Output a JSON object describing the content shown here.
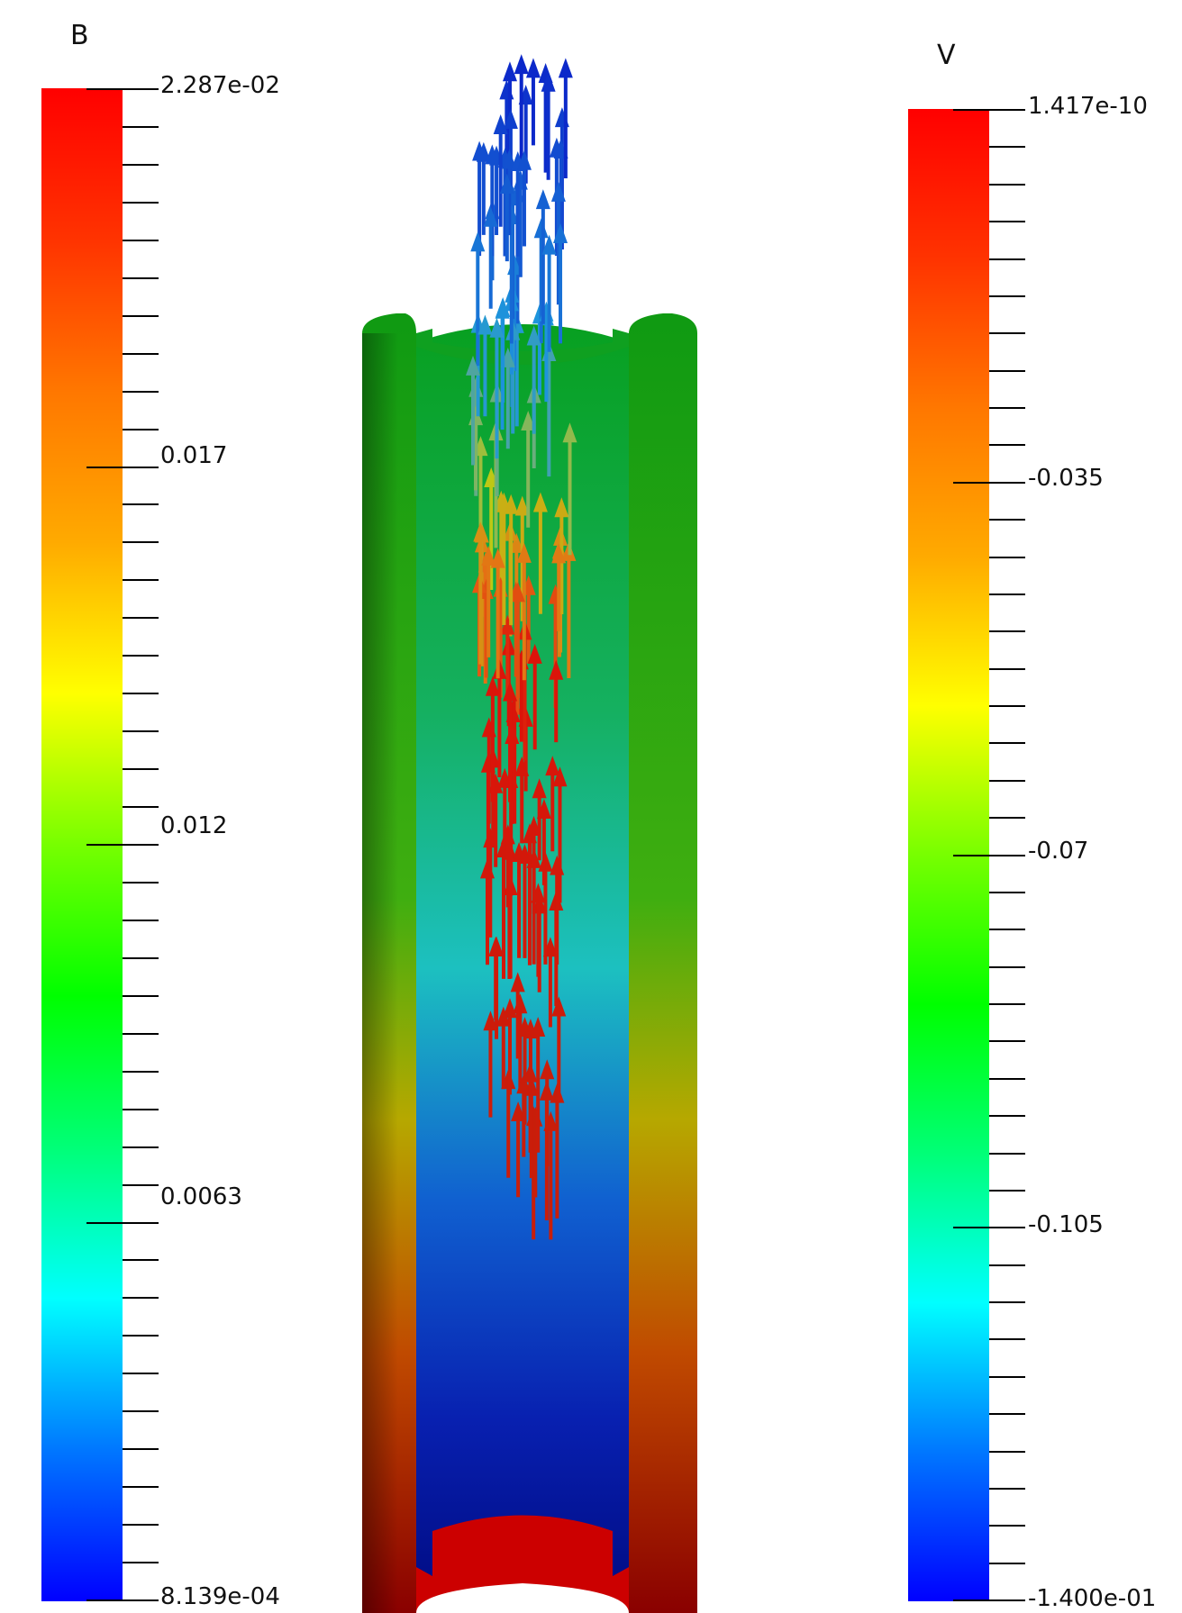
{
  "legend_b": {
    "title": "B",
    "max_label": "2.287e-02",
    "labels": [
      "0.017",
      "0.012",
      "0.0063"
    ],
    "min_label": "8.139e-04"
  },
  "legend_v": {
    "title": "V",
    "max_label": "1.417e-10",
    "labels": [
      "-0.035",
      "-0.07",
      "-0.105"
    ],
    "min_label": "-1.400e-01"
  },
  "colors": {
    "colormap": [
      "#0000ff",
      "#0077ff",
      "#00ffff",
      "#00ff77",
      "#00ff00",
      "#77ff00",
      "#ffff00",
      "#ffaa00",
      "#ff7700",
      "#ff3300",
      "#ff0000"
    ],
    "arrow_low": "#0a1fc8",
    "arrow_high": "#e01010",
    "tube_outer": "#109a10"
  }
}
